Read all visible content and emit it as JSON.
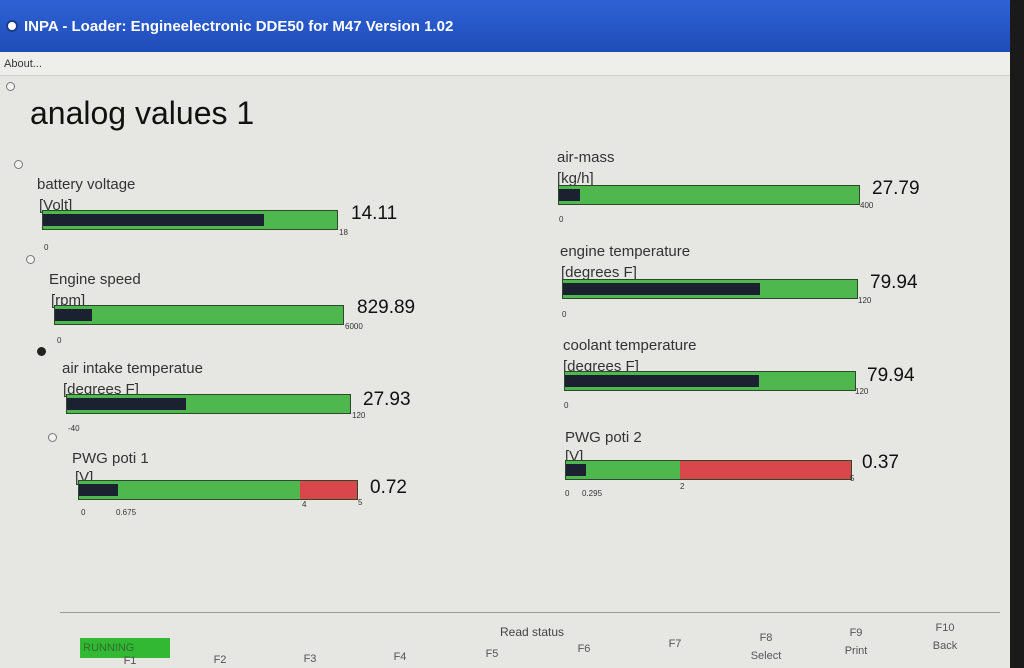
{
  "window": {
    "title": "INPA - Loader:  Engineelectronic DDE50 for M47 Version 1.02"
  },
  "menu": {
    "about": "About..."
  },
  "page_title": "analog values 1",
  "colors": {
    "bar_green": "#4eb84e",
    "bar_red": "#d9464b",
    "fill_dark": "#1b2130",
    "running_green": "#33b833"
  },
  "gauges": [
    {
      "name": "battery voltage",
      "unit": "[Volt]",
      "value": "14.11",
      "min": "0",
      "max": "18",
      "fill_fraction": 0.75
    },
    {
      "name": "Engine speed",
      "unit": "[rpm]",
      "value": "829.89",
      "min": "0",
      "max": "6000",
      "fill_fraction": 0.13
    },
    {
      "name": "air intake temperatue",
      "unit": "[degrees F]",
      "value": "27.93",
      "min": "-40",
      "max": "120",
      "fill_fraction": 0.42
    },
    {
      "name": "PWG poti 1",
      "unit": "[V]",
      "value": "0.72",
      "min": "0",
      "mark": "0.675",
      "red_start": "4",
      "max": "5",
      "fill_fraction": 0.14
    },
    {
      "name": "air-mass",
      "unit": "[kg/h]",
      "value": "27.79",
      "min": "0",
      "max": "400",
      "fill_fraction": 0.07
    },
    {
      "name": "engine temperature",
      "unit": "[degrees F]",
      "value": "79.94",
      "min": "0",
      "max": "120",
      "fill_fraction": 0.67
    },
    {
      "name": "coolant temperature",
      "unit": "[degrees F]",
      "value": "79.94",
      "min": "0",
      "max": "120",
      "fill_fraction": 0.67
    },
    {
      "name": "PWG poti 2",
      "unit": "[V]",
      "value": "0.37",
      "min": "0",
      "mark": "0.295",
      "red_start": "2",
      "max": "5",
      "fill_fraction": 0.07
    }
  ],
  "status": {
    "running": "RUNNING",
    "read_status": "Read status"
  },
  "fkeys": [
    {
      "key": "F1",
      "label": ""
    },
    {
      "key": "F2",
      "label": ""
    },
    {
      "key": "F3",
      "label": ""
    },
    {
      "key": "F4",
      "label": ""
    },
    {
      "key": "F5",
      "label": ""
    },
    {
      "key": "F6",
      "label": ""
    },
    {
      "key": "F7",
      "label": ""
    },
    {
      "key": "F8",
      "label": "Select"
    },
    {
      "key": "F9",
      "label": "Print"
    },
    {
      "key": "F10",
      "label": "Back"
    }
  ]
}
